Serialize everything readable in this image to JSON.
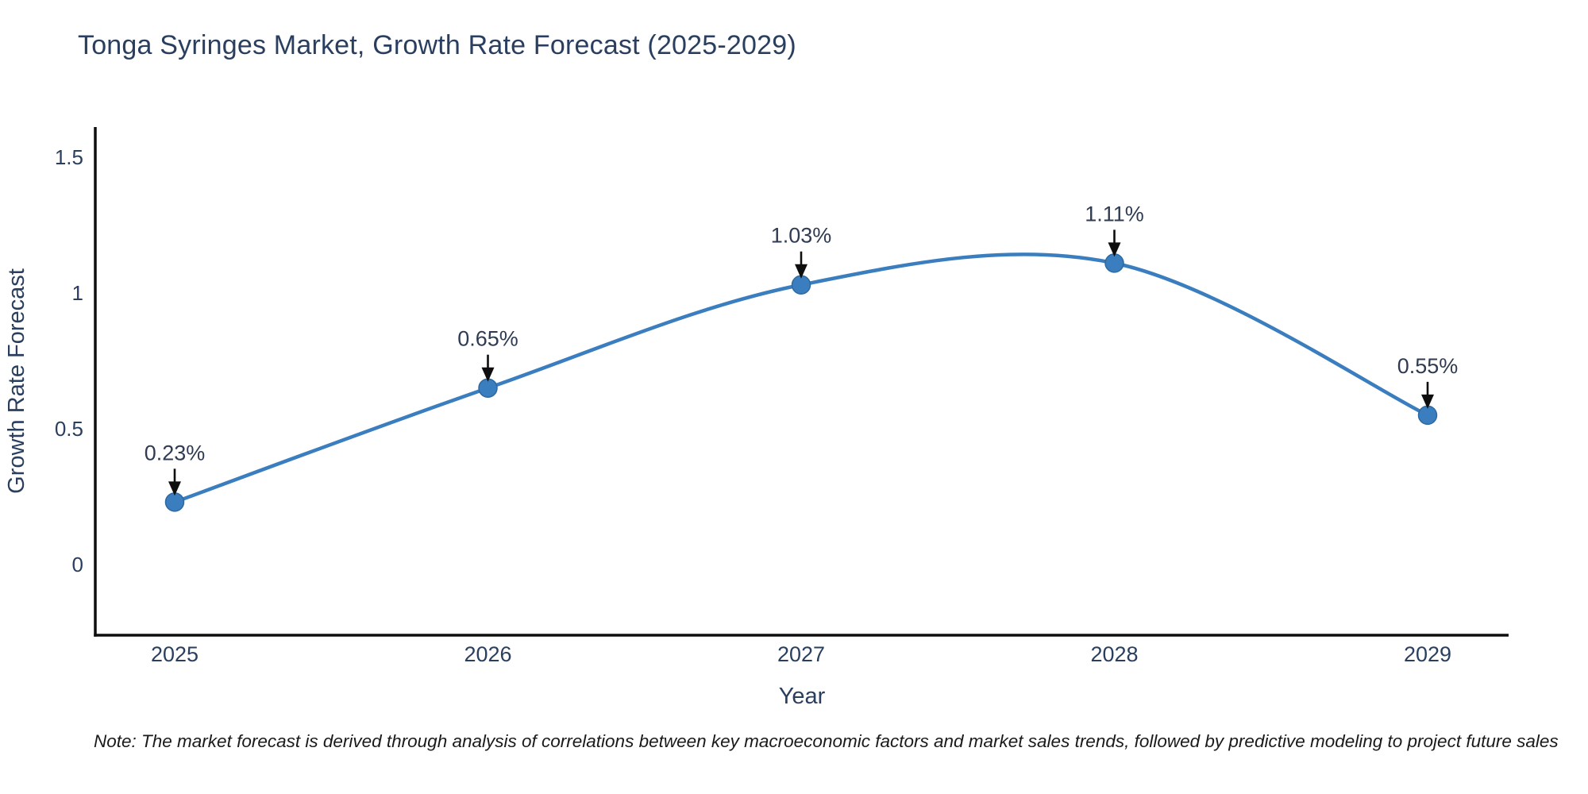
{
  "page": {
    "title": "Tonga Syringes Market, Growth Rate Forecast (2025-2029)",
    "note": "Note: The market forecast is derived through analysis of correlations between key macroeconomic factors and market sales trends, followed by predictive modeling to project future sales"
  },
  "chart_data": {
    "type": "line",
    "title": "Tonga Syringes Market, Growth Rate Forecast (2025-2029)",
    "xlabel": "Year",
    "ylabel": "Growth Rate Forecast",
    "categories": [
      "2025",
      "2026",
      "2027",
      "2028",
      "2029"
    ],
    "values": [
      0.23,
      0.65,
      1.03,
      1.11,
      0.55
    ],
    "point_labels": [
      "0.23%",
      "0.65%",
      "1.03%",
      "1.11%",
      "0.55%"
    ],
    "yticks": [
      0,
      0.5,
      1,
      1.5
    ],
    "ylim": [
      -0.26,
      1.61
    ],
    "line_shape": "spline",
    "grid": false,
    "legend": "none",
    "markers": true,
    "annotations_with_arrows": true,
    "colors": {
      "line": "#3a7ebf",
      "marker_fill": "#3a7ebf",
      "marker_edge": "#2e699f",
      "axis_line": "#0e0e0e",
      "tick_text": "#2a3f5f",
      "annotation_text": "#2f3b52",
      "arrow": "#0e0e0e",
      "title_text": "#2a3f5f"
    }
  }
}
